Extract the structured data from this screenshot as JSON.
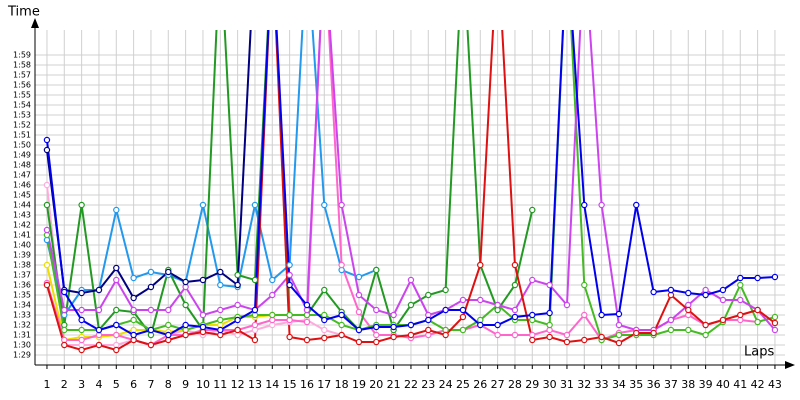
{
  "chart_data": {
    "type": "line",
    "y_label": "Time",
    "x_label": "Laps",
    "x": [
      1,
      2,
      3,
      4,
      5,
      6,
      7,
      8,
      9,
      10,
      11,
      12,
      13,
      14,
      15,
      16,
      17,
      18,
      19,
      20,
      21,
      22,
      23,
      24,
      25,
      26,
      27,
      28,
      29,
      30,
      31,
      32,
      33,
      34,
      35,
      36,
      37,
      38,
      39,
      40,
      41,
      42,
      43
    ],
    "xlim": [
      0.31,
      43.58
    ],
    "xticks": [
      1,
      2,
      3,
      4,
      5,
      6,
      7,
      8,
      9,
      10,
      11,
      12,
      13,
      14,
      15,
      16,
      17,
      18,
      19,
      20,
      21,
      22,
      23,
      24,
      25,
      26,
      27,
      28,
      29,
      30,
      31,
      32,
      33,
      34,
      35,
      36,
      37,
      38,
      39,
      40,
      41,
      42,
      43
    ],
    "ylim": [
      88,
      121.5
    ],
    "yticks": [
      {
        "value": 89,
        "label": "1:29"
      },
      {
        "value": 90,
        "label": "1:30"
      },
      {
        "value": 91,
        "label": "1:31"
      },
      {
        "value": 92,
        "label": "1:32"
      },
      {
        "value": 93,
        "label": "1:33"
      },
      {
        "value": 94,
        "label": "1:34"
      },
      {
        "value": 95,
        "label": "1:35"
      },
      {
        "value": 96,
        "label": "1:36"
      },
      {
        "value": 97,
        "label": "1:37"
      },
      {
        "value": 98,
        "label": "1:38"
      },
      {
        "value": 99,
        "label": "1:39"
      },
      {
        "value": 100,
        "label": "1:40"
      },
      {
        "value": 101,
        "label": "1:41"
      },
      {
        "value": 102,
        "label": "1:42"
      },
      {
        "value": 103,
        "label": "1:43"
      },
      {
        "value": 104,
        "label": "1:44"
      },
      {
        "value": 105,
        "label": "1:45"
      },
      {
        "value": 106,
        "label": "1:46"
      },
      {
        "value": 107,
        "label": "1:47"
      },
      {
        "value": 108,
        "label": "1:48"
      },
      {
        "value": 109,
        "label": "1:49"
      },
      {
        "value": 110,
        "label": "1:50"
      },
      {
        "value": 111,
        "label": "1:51"
      },
      {
        "value": 112,
        "label": "1:52"
      },
      {
        "value": 113,
        "label": "1:53"
      },
      {
        "value": 114,
        "label": "1:54"
      },
      {
        "value": 115,
        "label": "1:55"
      },
      {
        "value": 116,
        "label": "1:56"
      },
      {
        "value": 117,
        "label": "1:57"
      },
      {
        "value": 118,
        "label": "1:58"
      },
      {
        "value": 119,
        "label": "1:59"
      }
    ],
    "grid": true,
    "series": [
      {
        "color": "#ffaadd",
        "values": [
          106,
          90,
          90,
          90,
          90,
          90.5,
          90,
          91,
          91.5,
          91,
          91.5,
          91,
          91.5,
          92,
          92.3,
          92.5,
          91.5,
          91,
          null,
          null,
          null,
          null,
          null,
          null,
          null,
          null,
          null,
          null,
          null,
          null,
          null,
          null,
          null,
          null,
          null,
          null,
          null,
          null,
          null,
          null,
          null,
          null,
          null
        ]
      },
      {
        "color": "#eedd00",
        "values": [
          98,
          90.5,
          90.8,
          90.8,
          91,
          91.5,
          91.5,
          91.3,
          91.5,
          92,
          92,
          92.8,
          92.8,
          93,
          null,
          null,
          null,
          null,
          null,
          null,
          null,
          null,
          null,
          null,
          null,
          null,
          null,
          null,
          null,
          null,
          null,
          null,
          null,
          null,
          null,
          null,
          null,
          null,
          null,
          null,
          null,
          null,
          null
        ]
      },
      {
        "color": "#2299ee",
        "values": [
          100.5,
          93,
          95.5,
          95.5,
          103.5,
          96.7,
          97.3,
          97,
          96.3,
          104,
          96,
          95.8,
          104,
          96.5,
          98,
          130,
          104,
          97.5,
          96.8,
          97.5,
          null,
          null,
          null,
          null,
          null,
          null,
          null,
          null,
          null,
          null,
          null,
          null,
          null,
          null,
          null,
          null,
          null,
          null,
          null,
          null,
          null,
          null,
          null
        ]
      },
      {
        "color": "#ff66cc",
        "values": [
          96.2,
          90.5,
          90.5,
          91,
          91,
          90.5,
          90,
          91,
          91,
          91.5,
          91.5,
          91.5,
          92,
          92.5,
          92.5,
          92.3,
          130,
          98,
          93.3,
          91,
          91,
          90.7,
          91,
          91.5,
          91.5,
          92,
          91,
          91,
          91,
          91.5,
          91,
          93,
          90.5,
          91.2,
          91.5,
          91.5,
          92.5,
          93,
          92,
          92.5,
          92.5,
          92.3,
          null
        ]
      },
      {
        "color": "#229922",
        "values": [
          104,
          92,
          104,
          91.5,
          93.5,
          93.3,
          91,
          97.5,
          94,
          91.5,
          130,
          97,
          96.5,
          130,
          93,
          93,
          95.5,
          93.3,
          91.5,
          97.5,
          91.5,
          94,
          95,
          95.5,
          130,
          98,
          93.5,
          96,
          103.5,
          null,
          null,
          null,
          null,
          null,
          null,
          null,
          null,
          null,
          null,
          null,
          null,
          null,
          null
        ]
      },
      {
        "color": "#44bb22",
        "values": [
          101,
          91.5,
          91.5,
          91.5,
          92,
          92.5,
          91.5,
          92,
          91.5,
          92,
          92.5,
          92.8,
          93,
          93,
          93,
          93,
          93,
          92,
          91.5,
          92,
          92,
          92,
          92.5,
          91.5,
          91.5,
          92.5,
          94,
          92.5,
          92.5,
          92,
          130,
          96,
          90.5,
          91,
          91,
          91,
          91.5,
          91.5,
          91,
          92.3,
          96,
          92.3,
          92.8
        ]
      },
      {
        "color": "#cc44ee",
        "values": [
          101.5,
          93.5,
          93.5,
          93.5,
          96.5,
          93.5,
          93.5,
          93.5,
          95.8,
          93,
          93.5,
          94,
          93.5,
          95,
          97,
          93.5,
          130,
          104,
          95,
          93.5,
          93,
          96.5,
          93,
          93.5,
          94.5,
          94.5,
          94,
          93.5,
          96.5,
          96,
          94,
          130,
          104,
          92,
          91.5,
          91.5,
          92.5,
          94,
          95.5,
          94.5,
          94.5,
          93.5,
          91.5
        ]
      },
      {
        "color": "#dd1111",
        "values": [
          96,
          90,
          89.5,
          90,
          89.5,
          90.5,
          90,
          90.5,
          91,
          91.3,
          91,
          91.5,
          90.5,
          130,
          90.8,
          90.5,
          90.7,
          91,
          90.3,
          90.3,
          90.8,
          91,
          91.5,
          91,
          92.8,
          98,
          130,
          98,
          90.5,
          90.8,
          90.3,
          90.5,
          90.8,
          90.2,
          91.2,
          91.2,
          95,
          93.5,
          92,
          92.5,
          93,
          93.5,
          92.2
        ]
      },
      {
        "color": "#000080",
        "values": [
          109.5,
          95.5,
          95.2,
          95.5,
          97.7,
          94.7,
          95.8,
          97.3,
          96.3,
          96.5,
          97.3,
          96,
          130,
          null,
          null,
          null,
          null,
          null,
          null,
          null,
          null,
          null,
          null,
          null,
          null,
          null,
          null,
          null,
          null,
          null,
          null,
          null,
          null,
          null,
          null,
          null,
          null,
          null,
          null,
          null,
          null,
          null,
          null
        ]
      },
      {
        "color": "#0000ee",
        "values": [
          110.5,
          95.3,
          92.5,
          91.5,
          92,
          91,
          91.5,
          91,
          92,
          91.8,
          91.5,
          92.5,
          93.5,
          130,
          96,
          94,
          92.5,
          93,
          91.5,
          91.8,
          91.8,
          92,
          92.5,
          93.5,
          93.5,
          92,
          92,
          92.8,
          93,
          93.2,
          130,
          104,
          93,
          93.1,
          104,
          95.3,
          95.5,
          95.2,
          95,
          95.5,
          96.7,
          96.7,
          96.8
        ]
      }
    ]
  }
}
